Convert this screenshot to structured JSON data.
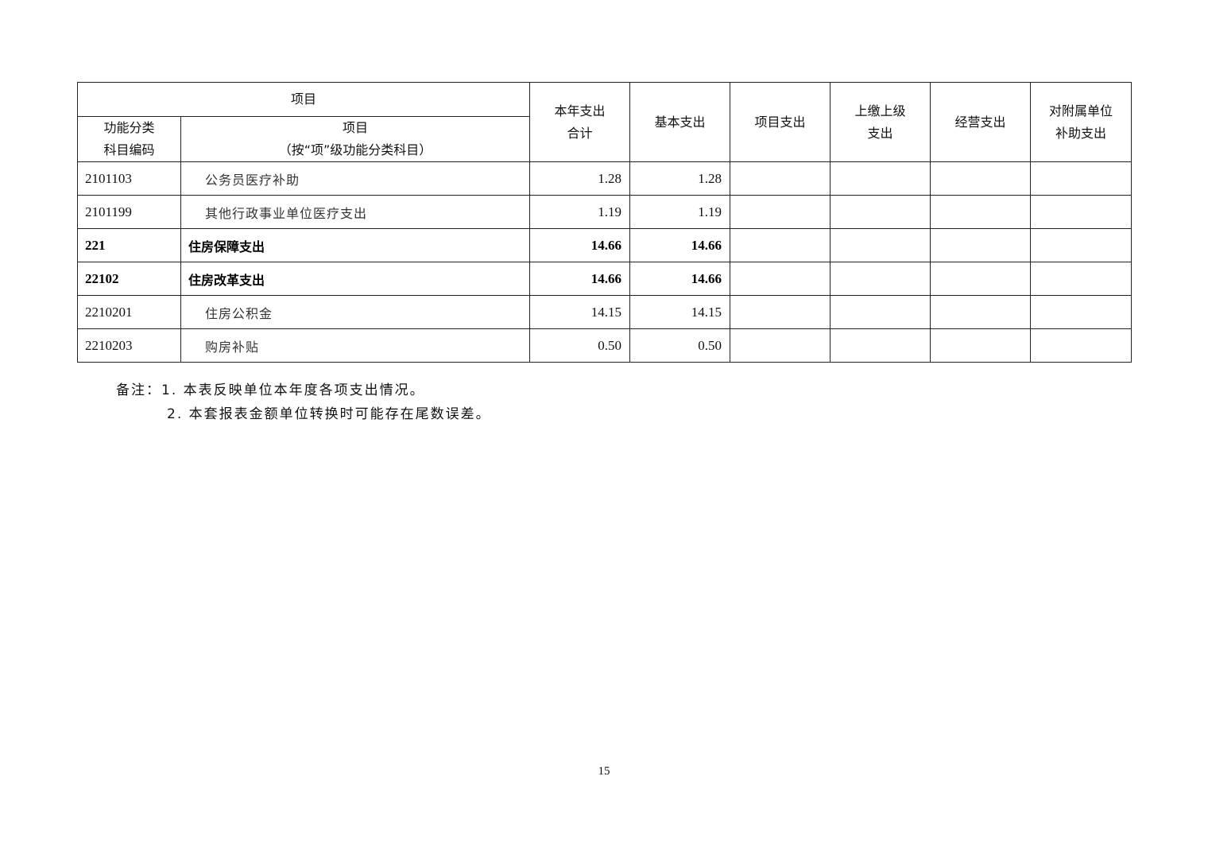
{
  "table": {
    "header": {
      "group": "项目",
      "code": "功能分类\n科目编码",
      "item_line1": "项目",
      "item_line2": "（按“项”级功能分类科目）",
      "total": "本年支出\n合计",
      "basic": "基本支出",
      "project": "项目支出",
      "upper": "上缴上级\n支出",
      "business": "经营支出",
      "subsidy": "对附属单位\n补助支出"
    },
    "rows": [
      {
        "code": "2101103",
        "name": "公务员医疗补助",
        "total": "1.28",
        "basic": "1.28",
        "bold": false
      },
      {
        "code": "2101199",
        "name": "其他行政事业单位医疗支出",
        "total": "1.19",
        "basic": "1.19",
        "bold": false
      },
      {
        "code": "221",
        "name": "住房保障支出",
        "total": "14.66",
        "basic": "14.66",
        "bold": true
      },
      {
        "code": "22102",
        "name": "住房改革支出",
        "total": "14.66",
        "basic": "14.66",
        "bold": true
      },
      {
        "code": "2210201",
        "name": "住房公积金",
        "total": "14.15",
        "basic": "14.15",
        "bold": false
      },
      {
        "code": "2210203",
        "name": "购房补贴",
        "total": "0.50",
        "basic": "0.50",
        "bold": false
      }
    ]
  },
  "notes": {
    "line1": "备注：1. 本表反映单位本年度各项支出情况。",
    "line2": "2. 本套报表金额单位转换时可能存在尾数误差。"
  },
  "page_number": "15"
}
